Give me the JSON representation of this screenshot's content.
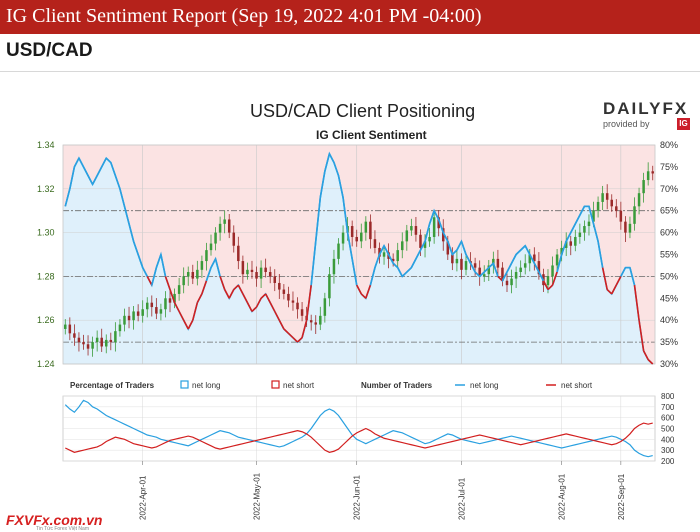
{
  "header": {
    "title": "IG Client Sentiment Report (Sep 19, 2022 4:01 PM -04:00)"
  },
  "pair": "USD/CAD",
  "chart_title": "USD/CAD Client Positioning",
  "chart_subtitle": "IG Client Sentiment",
  "brand": {
    "name": "DAILYFX",
    "provided_by": "provided by",
    "ig": "IG"
  },
  "footer": {
    "logo": "FXVFx.com.vn",
    "tagline": "Tin Tức Forex Việt Nam"
  },
  "colors": {
    "header_bg": "#b5221b",
    "short_zone": "#fbe3e3",
    "long_zone": "#dff0fb",
    "candle_up": "#3a9b3a",
    "candle_down": "#9b2a2a",
    "net_long": "#2aa0e0",
    "net_short": "#d21f1f"
  },
  "chart_data": [
    {
      "type": "candlestick+line",
      "title": "USD/CAD Client Positioning",
      "subtitle": "IG Client Sentiment",
      "y_left_ticks": [
        "1.34",
        "1.32",
        "1.30",
        "1.28",
        "1.26",
        "1.24"
      ],
      "ylim_left": [
        1.24,
        1.34
      ],
      "y_right_ticks": [
        "80%",
        "75%",
        "70%",
        "65%",
        "60%",
        "55%",
        "50%",
        "45%",
        "40%",
        "35%",
        "30%"
      ],
      "ylim_right": [
        30,
        80
      ],
      "zones": "red background when net long % below 50%, blue below the line",
      "close": [
        1.258,
        1.254,
        1.252,
        1.25,
        1.249,
        1.247,
        1.25,
        1.252,
        1.248,
        1.251,
        1.25,
        1.255,
        1.258,
        1.262,
        1.26,
        1.264,
        1.262,
        1.265,
        1.268,
        1.266,
        1.263,
        1.265,
        1.27,
        1.268,
        1.272,
        1.276,
        1.28,
        1.282,
        1.279,
        1.283,
        1.287,
        1.292,
        1.295,
        1.3,
        1.304,
        1.306,
        1.3,
        1.294,
        1.287,
        1.281,
        1.283,
        1.282,
        1.279,
        1.284,
        1.282,
        1.28,
        1.277,
        1.274,
        1.272,
        1.269,
        1.268,
        1.265,
        1.262,
        1.26,
        1.259,
        1.258,
        1.262,
        1.27,
        1.281,
        1.288,
        1.295,
        1.3,
        1.303,
        1.298,
        1.296,
        1.3,
        1.305,
        1.297,
        1.293,
        1.289,
        1.291,
        1.288,
        1.287,
        1.292,
        1.296,
        1.301,
        1.303,
        1.299,
        1.293,
        1.296,
        1.298,
        1.307,
        1.302,
        1.296,
        1.29,
        1.286,
        1.288,
        1.283,
        1.287,
        1.286,
        1.284,
        1.28,
        1.281,
        1.285,
        1.288,
        1.284,
        1.278,
        1.276,
        1.279,
        1.282,
        1.284,
        1.286,
        1.29,
        1.287,
        1.281,
        1.276,
        1.28,
        1.285,
        1.29,
        1.293,
        1.296,
        1.294,
        1.298,
        1.3,
        1.303,
        1.305,
        1.31,
        1.314,
        1.318,
        1.315,
        1.312,
        1.31,
        1.305,
        1.3,
        1.304,
        1.312,
        1.318,
        1.324,
        1.328,
        1.327
      ],
      "net_long_pct": [
        66,
        70,
        75,
        77,
        75,
        73,
        71,
        73,
        75,
        77,
        76,
        73,
        70,
        66,
        62,
        58,
        55,
        52,
        50,
        48,
        52,
        55,
        50,
        47,
        44,
        42,
        40,
        38,
        40,
        44,
        46,
        49,
        52,
        54,
        50,
        47,
        45,
        47,
        48,
        46,
        44,
        42,
        43,
        45,
        46,
        44,
        42,
        40,
        38,
        37,
        36,
        35,
        36,
        40,
        48,
        58,
        68,
        74,
        78,
        76,
        73,
        68,
        60,
        54,
        48,
        46,
        45,
        48,
        52,
        55,
        57,
        55,
        53,
        52,
        50,
        51,
        52,
        54,
        56,
        58,
        62,
        65,
        63,
        60,
        58,
        55,
        56,
        58,
        55,
        53,
        51,
        50,
        51,
        52,
        53,
        50,
        49,
        51,
        53,
        55,
        56,
        57,
        55,
        53,
        51,
        49,
        47,
        48,
        51,
        55,
        58,
        60,
        62,
        64,
        66,
        66,
        62,
        58,
        52,
        47,
        46,
        48,
        50,
        52,
        52,
        48,
        40,
        33,
        31,
        30
      ],
      "legend": [
        "Percentage of Traders",
        "net long",
        "net short",
        "Number of Traders",
        "net long",
        "net short"
      ]
    },
    {
      "type": "line",
      "y_ticks": [
        "800",
        "700",
        "600",
        "500",
        "400",
        "300",
        "200"
      ],
      "ylim": [
        200,
        800
      ],
      "x_ticks": [
        "2022-Apr-01",
        "2022-May-01",
        "2022-Jun-01",
        "2022-Jul-01",
        "2022-Aug-01",
        "2022-Sep-01"
      ],
      "series": [
        {
          "name": "net long",
          "values": [
            720,
            680,
            650,
            700,
            760,
            740,
            700,
            680,
            650,
            620,
            600,
            580,
            560,
            540,
            520,
            500,
            480,
            460,
            440,
            430,
            420,
            400,
            390,
            380,
            370,
            360,
            350,
            340,
            360,
            380,
            400,
            420,
            440,
            460,
            480,
            470,
            460,
            440,
            420,
            410,
            400,
            390,
            380,
            370,
            360,
            350,
            340,
            330,
            340,
            360,
            380,
            400,
            420,
            450,
            500,
            560,
            620,
            660,
            680,
            660,
            620,
            560,
            500,
            440,
            400,
            380,
            360,
            380,
            400,
            420,
            440,
            460,
            480,
            470,
            460,
            440,
            420,
            400,
            380,
            360,
            370,
            390,
            410,
            430,
            450,
            440,
            420,
            400,
            390,
            380,
            370,
            360,
            370,
            380,
            390,
            400,
            410,
            420,
            430,
            420,
            410,
            400,
            390,
            380,
            370,
            360,
            350,
            340,
            330,
            320,
            330,
            340,
            350,
            360,
            370,
            380,
            390,
            400,
            410,
            420,
            430,
            420,
            400,
            380,
            350,
            300,
            270,
            250,
            240,
            250
          ]
        },
        {
          "name": "net short",
          "values": [
            320,
            300,
            280,
            290,
            300,
            310,
            320,
            330,
            350,
            380,
            400,
            420,
            410,
            400,
            380,
            360,
            350,
            340,
            330,
            320,
            330,
            350,
            370,
            390,
            400,
            410,
            420,
            430,
            420,
            400,
            380,
            360,
            340,
            320,
            310,
            320,
            330,
            340,
            350,
            360,
            370,
            380,
            390,
            400,
            410,
            420,
            430,
            440,
            450,
            460,
            470,
            480,
            470,
            450,
            420,
            380,
            340,
            300,
            280,
            290,
            310,
            350,
            390,
            430,
            460,
            480,
            500,
            480,
            450,
            430,
            410,
            400,
            390,
            380,
            370,
            360,
            350,
            340,
            330,
            320,
            330,
            340,
            350,
            360,
            370,
            380,
            390,
            400,
            410,
            420,
            430,
            440,
            430,
            420,
            410,
            400,
            390,
            380,
            370,
            360,
            350,
            360,
            370,
            380,
            390,
            400,
            410,
            420,
            430,
            440,
            450,
            440,
            430,
            420,
            410,
            400,
            390,
            380,
            370,
            360,
            350,
            360,
            380,
            410,
            450,
            500,
            530,
            550,
            540,
            550
          ]
        }
      ]
    }
  ]
}
